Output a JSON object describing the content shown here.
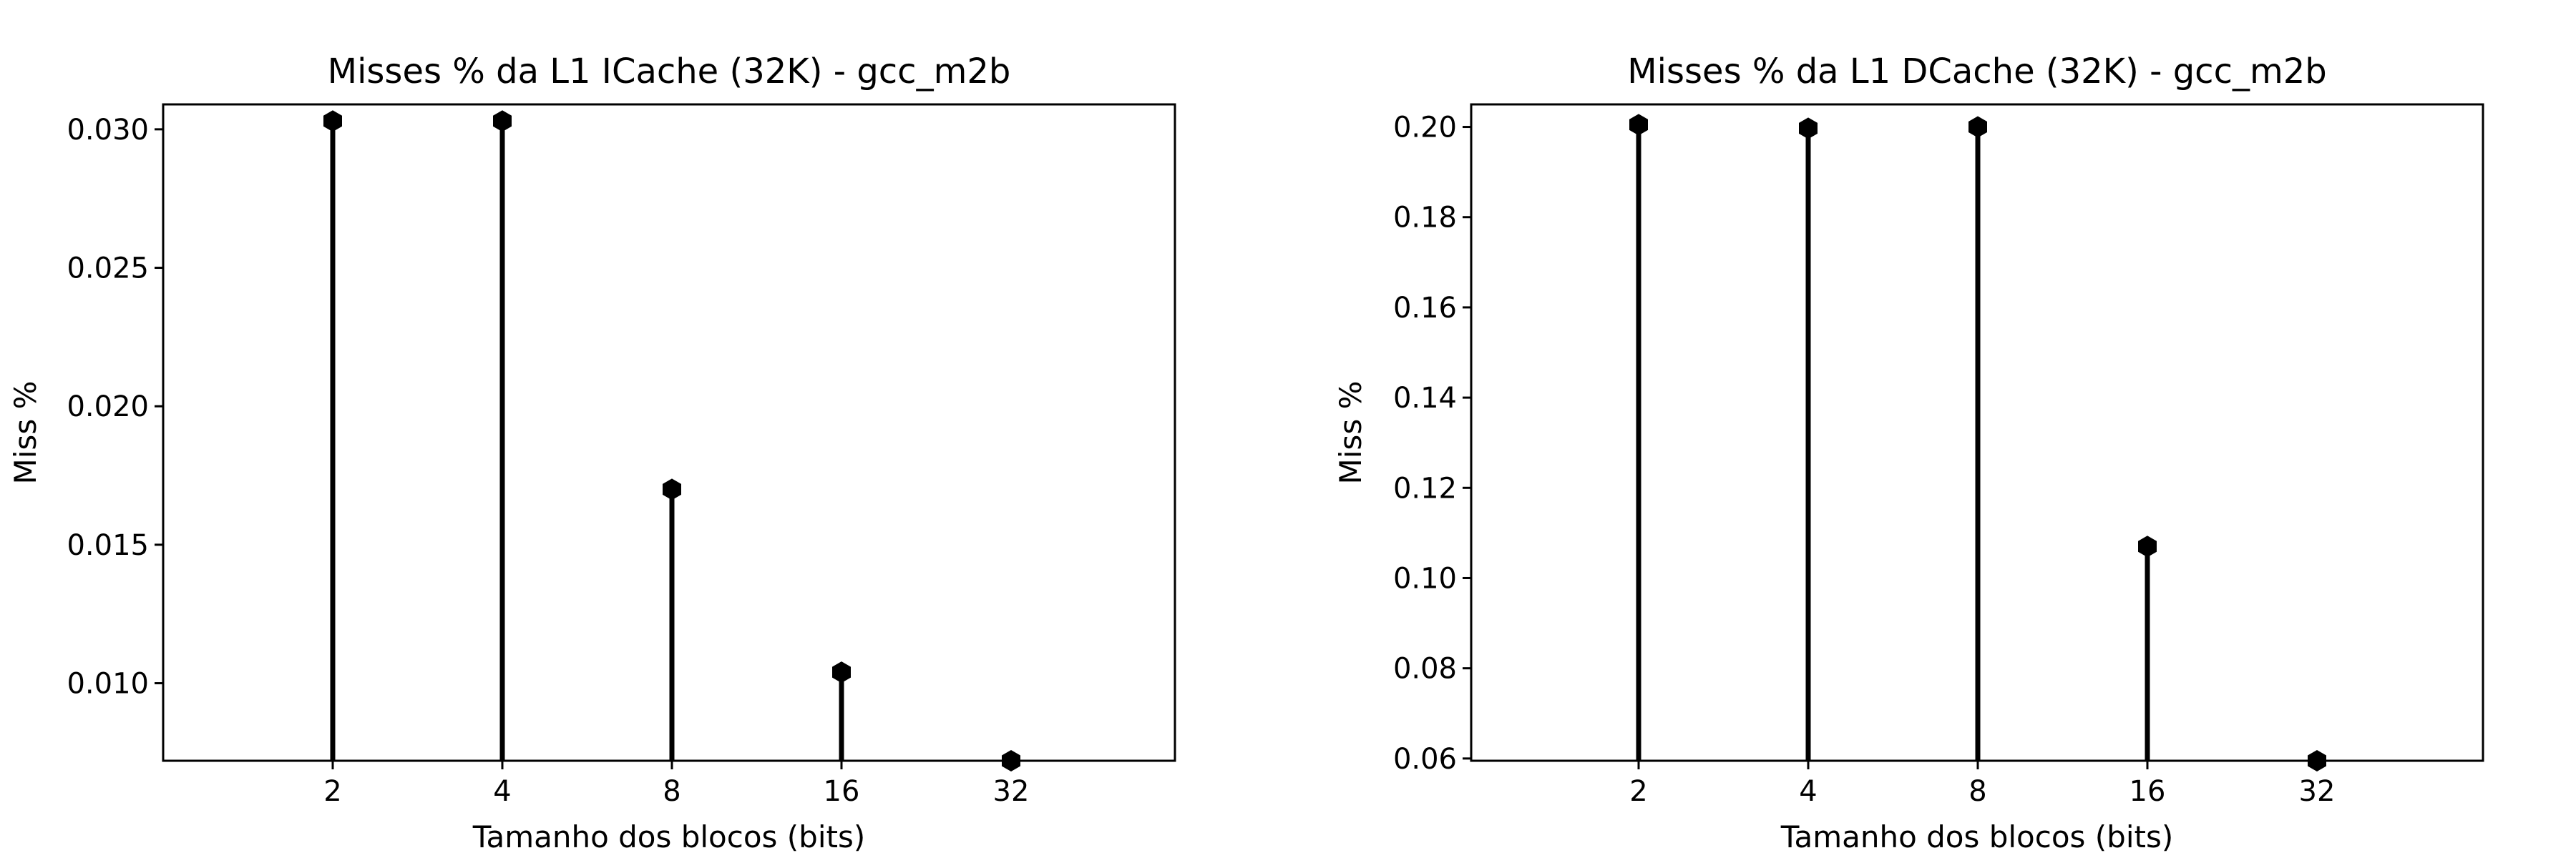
{
  "chart_data": [
    {
      "type": "stem",
      "title": "Misses % da L1 ICache (32K) - gcc_m2b",
      "xlabel": "Tamanho dos blocos (bits)",
      "ylabel": "Miss %",
      "categories": [
        "2",
        "4",
        "8",
        "16",
        "32"
      ],
      "values": [
        0.0303,
        0.0303,
        0.017,
        0.0104,
        0.0072
      ],
      "ylim": [
        0.0072,
        0.0309
      ],
      "yticks": [
        0.01,
        0.015,
        0.02,
        0.025,
        0.03
      ],
      "ytick_labels": [
        "0.010",
        "0.015",
        "0.020",
        "0.025",
        "0.030"
      ],
      "grid": false,
      "marker": "hexagon",
      "color": "#000000"
    },
    {
      "type": "stem",
      "title": "Misses % da L1 DCache (32K) - gcc_m2b",
      "xlabel": "Tamanho dos blocos (bits)",
      "ylabel": "Miss %",
      "categories": [
        "2",
        "4",
        "8",
        "16",
        "32"
      ],
      "values": [
        0.2005,
        0.1997,
        0.2,
        0.107,
        0.0595
      ],
      "ylim": [
        0.0595,
        0.205
      ],
      "yticks": [
        0.06,
        0.08,
        0.1,
        0.12,
        0.14,
        0.16,
        0.18,
        0.2
      ],
      "ytick_labels": [
        "0.06",
        "0.08",
        "0.10",
        "0.12",
        "0.14",
        "0.16",
        "0.18",
        "0.20"
      ],
      "grid": false,
      "marker": "hexagon",
      "color": "#000000"
    }
  ]
}
